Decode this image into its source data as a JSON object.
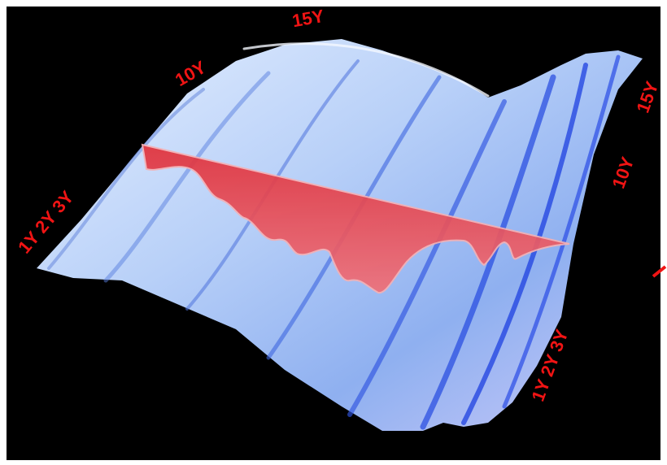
{
  "labels": {
    "back_top_15y": "15Y",
    "back_top_10y": "10Y",
    "left_short": "1Y 2Y 3Y",
    "right_15y": "15Y",
    "right_10y": "10Y",
    "right_short": "1Y 2Y 3Y"
  }
}
